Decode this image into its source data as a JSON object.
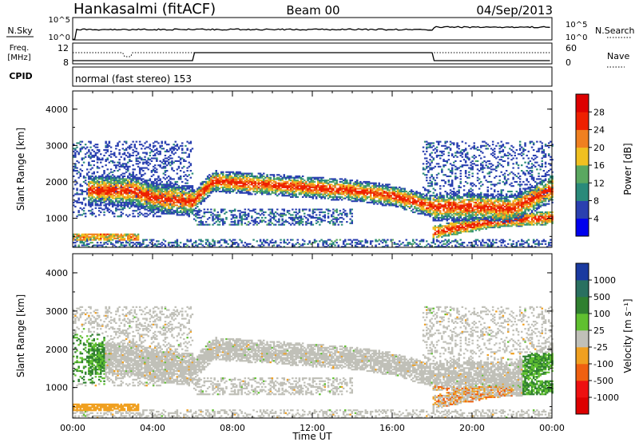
{
  "header": {
    "station": "Hankasalmi (fitACF)",
    "beam": "Beam 00",
    "date": "04/Sep/2013"
  },
  "top_panel": {
    "left_label": "N.Sky",
    "right_label": "N.Search",
    "left_ticks": [
      "10^5",
      "10^0"
    ],
    "right_ticks": [
      "10^5",
      "10^0"
    ]
  },
  "freq_panel": {
    "left_label_1": "Freq.",
    "left_label_2": "[MHz]",
    "left_ticks": [
      "12",
      "8"
    ],
    "right_label": "Nave",
    "right_ticks": [
      "60",
      "0"
    ]
  },
  "cpid": {
    "label": "CPID",
    "text": "normal (fast stereo) 153"
  },
  "power_colorbar": {
    "label": "Power [dB]",
    "ticks": [
      "28",
      "24",
      "20",
      "16",
      "12",
      "8",
      "4"
    ],
    "colors": [
      "#0000ee",
      "#2a40b0",
      "#2a8a7a",
      "#5aa860",
      "#f0c020",
      "#f08020",
      "#ee2000",
      "#dd0000"
    ]
  },
  "velocity_colorbar": {
    "label": "Velocity [m s⁻¹]",
    "ticks": [
      "1000",
      "500",
      "100",
      "25",
      "-25",
      "-100",
      "-500",
      "-1000"
    ],
    "colors": [
      "#1a3aa0",
      "#2a7060",
      "#308030",
      "#60c030",
      "#c0c0b8",
      "#f0a020",
      "#f06010",
      "#ee1010",
      "#dd0000"
    ]
  },
  "chart_data": {
    "type": "heatmap",
    "xlabel": "Time UT",
    "ylabel": "Slant Range [km]",
    "x_ticks": [
      "00:00",
      "04:00",
      "08:00",
      "12:00",
      "16:00",
      "20:00",
      "00:00"
    ],
    "y_ticks": [
      1000,
      2000,
      3000,
      4000
    ],
    "xlim": [
      0,
      24
    ],
    "ylim": [
      200,
      4500
    ],
    "panels": [
      "Power",
      "Velocity"
    ],
    "echo_bands": [
      {
        "name": "main_F_band",
        "points": [
          [
            3,
            1750
          ],
          [
            4,
            1550
          ],
          [
            6,
            1450
          ],
          [
            7,
            2000
          ],
          [
            10,
            1900
          ],
          [
            14,
            1750
          ],
          [
            16,
            1600
          ],
          [
            18,
            1300
          ],
          [
            20,
            1300
          ],
          [
            22,
            1250
          ],
          [
            24,
            1800
          ]
        ]
      },
      {
        "name": "morning_E",
        "points": [
          [
            0,
            500
          ],
          [
            3,
            500
          ]
        ]
      },
      {
        "name": "evening_E",
        "points": [
          [
            18,
            600
          ],
          [
            21,
            900
          ],
          [
            24,
            1000
          ]
        ]
      }
    ]
  }
}
